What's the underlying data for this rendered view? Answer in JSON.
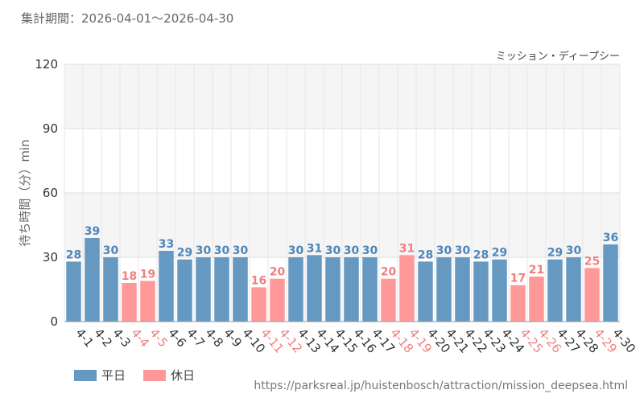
{
  "period_label": "集計期間：2026-04-01～2026-04-30",
  "source_url": "https://parksreal.jp/huistenbosch/attraction/mission_deepsea.html",
  "colors": {
    "weekday": "#6699c2",
    "holiday": "#ff9999",
    "weekday_text": "#4f86b8",
    "holiday_text": "#f07f7f",
    "grid": "#dddddd",
    "band": "#f5f5f5"
  },
  "chart_data": {
    "type": "bar",
    "title": "ミッション・ディープシー",
    "ylabel": "待ち時間（分）min",
    "ylim": [
      0,
      120
    ],
    "yticks": [
      0,
      30,
      60,
      90,
      120
    ],
    "categories": [
      "4-1",
      "4-2",
      "4-3",
      "4-4",
      "4-5",
      "4-6",
      "4-7",
      "4-8",
      "4-9",
      "4-10",
      "4-11",
      "4-12",
      "4-13",
      "4-14",
      "4-15",
      "4-16",
      "4-17",
      "4-18",
      "4-19",
      "4-20",
      "4-21",
      "4-22",
      "4-23",
      "4-24",
      "4-25",
      "4-26",
      "4-27",
      "4-28",
      "4-29",
      "4-30"
    ],
    "values": [
      28,
      39,
      30,
      18,
      19,
      33,
      29,
      30,
      30,
      30,
      16,
      20,
      30,
      31,
      30,
      30,
      30,
      20,
      31,
      28,
      30,
      30,
      28,
      29,
      17,
      21,
      29,
      30,
      25,
      36
    ],
    "day_type": [
      "weekday",
      "weekday",
      "weekday",
      "holiday",
      "holiday",
      "weekday",
      "weekday",
      "weekday",
      "weekday",
      "weekday",
      "holiday",
      "holiday",
      "weekday",
      "weekday",
      "weekday",
      "weekday",
      "weekday",
      "holiday",
      "holiday",
      "weekday",
      "weekday",
      "weekday",
      "weekday",
      "weekday",
      "holiday",
      "holiday",
      "weekday",
      "weekday",
      "holiday",
      "weekday"
    ],
    "legend": [
      {
        "key": "weekday",
        "label": "平日"
      },
      {
        "key": "holiday",
        "label": "休日"
      }
    ],
    "legend_position": "bottom-left",
    "grid": true
  }
}
